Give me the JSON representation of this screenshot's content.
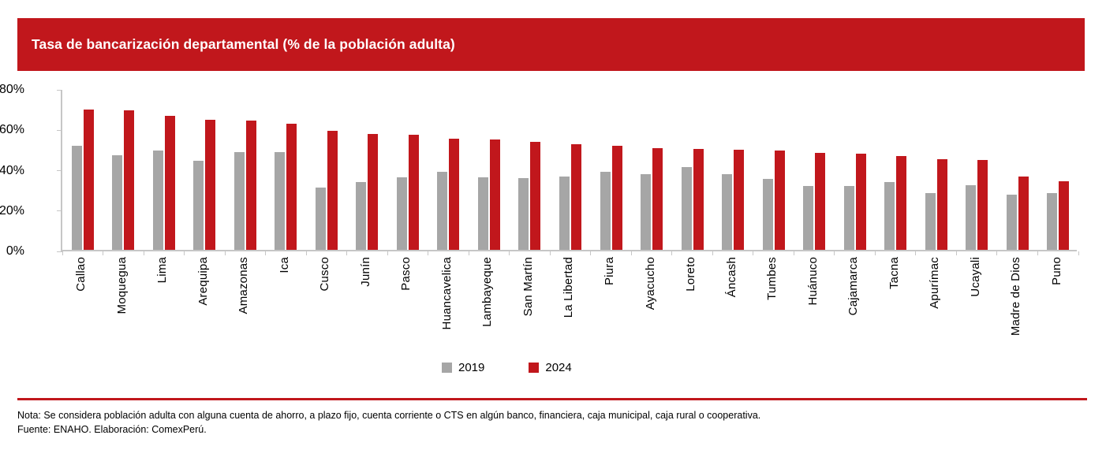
{
  "header": {
    "title": "Tasa de bancarización departamental (% de la población adulta)"
  },
  "colors": {
    "brand_red": "#C1171C",
    "series_2019": "#A6A6A6",
    "series_2024": "#C1171C",
    "axis": "#C6C6C6"
  },
  "chart_data": {
    "type": "bar",
    "title": "Tasa de bancarización departamental (% de la población adulta)",
    "categories": [
      "Callao",
      "Moquegua",
      "Lima",
      "Arequipa",
      "Amazonas",
      "Ica",
      "Cusco",
      "Junín",
      "Pasco",
      "Huancavelica",
      "Lambayeque",
      "San Martín",
      "La Libertad",
      "Piura",
      "Ayacucho",
      "Loreto",
      "Áncash",
      "Tumbes",
      "Huánuco",
      "Cajamarca",
      "Tacna",
      "Apurímac",
      "Ucayali",
      "Madre de Dios",
      "Puno"
    ],
    "series": [
      {
        "name": "2019",
        "color_key": "series_2019",
        "values": [
          51.5,
          47,
          49,
          44,
          48.5,
          48.5,
          31,
          33.5,
          36,
          38.5,
          36,
          35.5,
          36.5,
          38.5,
          37.5,
          41,
          37.5,
          35,
          31.5,
          31.5,
          33.5,
          28,
          32,
          27.5,
          28
        ]
      },
      {
        "name": "2024",
        "color_key": "series_2024",
        "values": [
          69.5,
          69,
          66.5,
          64.5,
          64,
          62.5,
          59,
          57.5,
          57,
          55,
          54.5,
          53.5,
          52.5,
          51.5,
          50.5,
          50,
          49.5,
          49,
          48,
          47.5,
          46.5,
          45,
          44.5,
          36.5,
          34
        ]
      }
    ],
    "xlabel": "",
    "ylabel": "",
    "ylim": [
      0,
      80
    ],
    "yticks": [
      "0%",
      "20%",
      "40%",
      "60%",
      "80%"
    ],
    "ytick_values": [
      0,
      20,
      40,
      60,
      80
    ],
    "grid": false,
    "xtick_rotation": 90,
    "legend_position": "bottom-center"
  },
  "legend": {
    "items": [
      {
        "label": "2019"
      },
      {
        "label": "2024"
      }
    ]
  },
  "footer": {
    "note": "Nota: Se considera población adulta con alguna cuenta de ahorro, a plazo fijo, cuenta corriente o CTS en algún banco, financiera, caja municipal, caja rural o cooperativa.",
    "source": "Fuente: ENAHO. Elaboración: ComexPerú."
  }
}
